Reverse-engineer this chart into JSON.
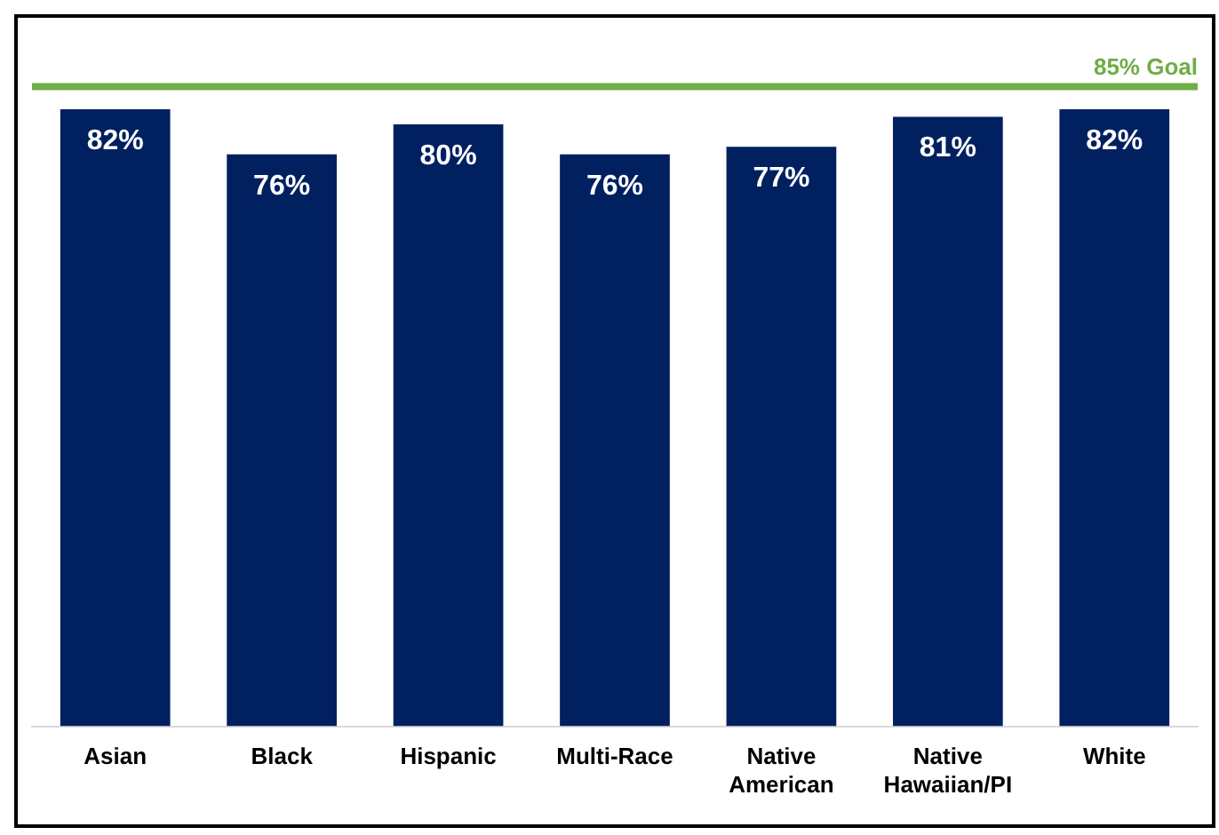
{
  "chart_data": {
    "type": "bar",
    "categories": [
      "Asian",
      "Black",
      "Hispanic",
      "Multi-Race",
      "Native American",
      "Native Hawaiian/PI",
      "White"
    ],
    "values": [
      82,
      76,
      80,
      76,
      77,
      81,
      82
    ],
    "value_labels": [
      "82%",
      "76%",
      "80%",
      "76%",
      "77%",
      "81%",
      "82%"
    ],
    "color": "#002060",
    "grid": false,
    "legend": false,
    "tick_labels": "x",
    "ref_lines": [
      {
        "axis": "y",
        "value": 85,
        "label": "85% Goal",
        "color": "#70ad47"
      }
    ]
  }
}
